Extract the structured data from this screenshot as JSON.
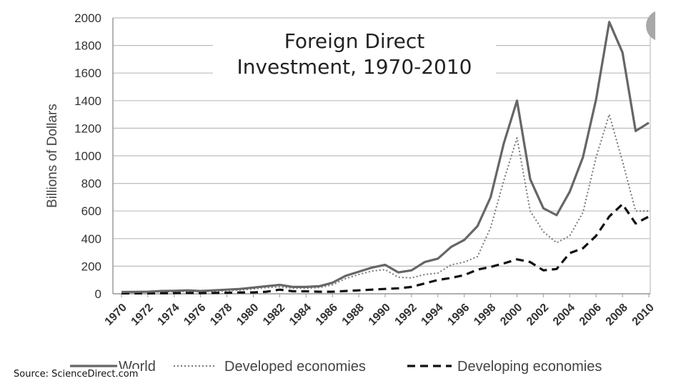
{
  "chart_data": {
    "type": "line",
    "title": "Foreign Direct Investment, 1970-2010",
    "title_lines": [
      "Foreign Direct",
      "Investment, 1970-2010"
    ],
    "ylabel": "Billions of Dollars",
    "xlabel": "",
    "ylim": [
      0,
      2000
    ],
    "xlim": [
      1970,
      2010
    ],
    "yticks": [
      "0",
      "200",
      "400",
      "600",
      "800",
      "1000",
      "1200",
      "1400",
      "1600",
      "1800",
      "2000"
    ],
    "xticks": [
      "1970",
      "1972",
      "1974",
      "1976",
      "1978",
      "1980",
      "1982",
      "1984",
      "1986",
      "1988",
      "1990",
      "1992",
      "1994",
      "1996",
      "1998",
      "2000",
      "2002",
      "2004",
      "2006",
      "2008",
      "2010"
    ],
    "grid": "horizontal",
    "legend_position": "bottom",
    "x": [
      1970,
      1971,
      1972,
      1973,
      1974,
      1975,
      1976,
      1977,
      1978,
      1979,
      1980,
      1981,
      1982,
      1983,
      1984,
      1985,
      1986,
      1987,
      1988,
      1989,
      1990,
      1991,
      1992,
      1993,
      1994,
      1995,
      1996,
      1997,
      1998,
      1999,
      2000,
      2001,
      2002,
      2003,
      2004,
      2005,
      2006,
      2007,
      2008,
      2009,
      2010
    ],
    "series": [
      {
        "name": "World",
        "style": "solid",
        "color": "#666666",
        "values": [
          13,
          14,
          15,
          20,
          22,
          25,
          20,
          25,
          30,
          35,
          45,
          55,
          65,
          50,
          50,
          55,
          80,
          130,
          160,
          190,
          210,
          155,
          170,
          230,
          255,
          340,
          390,
          490,
          700,
          1090,
          1400,
          830,
          620,
          570,
          740,
          990,
          1410,
          1970,
          1750,
          1180,
          1240
        ]
      },
      {
        "name": "Developed economies",
        "style": "dotted",
        "color": "#777777",
        "values": [
          10,
          11,
          12,
          15,
          16,
          18,
          14,
          18,
          22,
          27,
          35,
          45,
          50,
          40,
          40,
          45,
          65,
          110,
          140,
          165,
          175,
          120,
          115,
          140,
          150,
          210,
          230,
          270,
          480,
          820,
          1130,
          600,
          450,
          370,
          420,
          590,
          990,
          1300,
          960,
          600,
          600
        ]
      },
      {
        "name": "Developing economies",
        "style": "dashed",
        "color": "#111111",
        "values": [
          3,
          3,
          3,
          4,
          5,
          6,
          5,
          6,
          8,
          10,
          10,
          15,
          30,
          18,
          18,
          15,
          15,
          20,
          25,
          30,
          35,
          40,
          50,
          75,
          100,
          115,
          135,
          175,
          195,
          220,
          250,
          230,
          170,
          180,
          295,
          330,
          420,
          560,
          650,
          510,
          560
        ]
      }
    ]
  },
  "source_text": "Source:  ScienceDirect.com"
}
